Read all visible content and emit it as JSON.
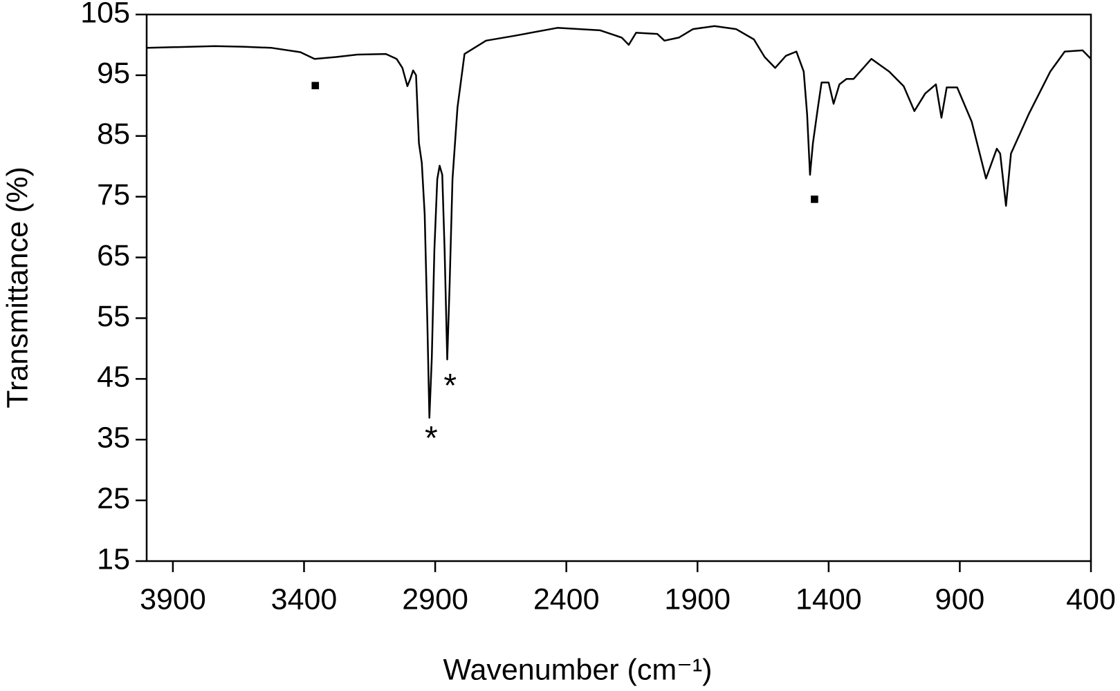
{
  "chart_data": {
    "type": "line",
    "x_label": "Wavenumber (cm⁻¹)",
    "y_label": "Transmittance (%)",
    "x": [
      4000,
      3741,
      3632,
      3523,
      3414,
      3360,
      3278,
      3197,
      3088,
      3047,
      3025,
      3006,
      2995,
      2984,
      2973,
      2962,
      2951,
      2940,
      2930,
      2922,
      2913,
      2903,
      2892,
      2883,
      2873,
      2864,
      2854,
      2845,
      2834,
      2815,
      2788,
      2706,
      2598,
      2434,
      2271,
      2189,
      2162,
      2134,
      2053,
      2026,
      1971,
      1917,
      1835,
      1753,
      1685,
      1644,
      1604,
      1563,
      1523,
      1495,
      1482,
      1471,
      1460,
      1441,
      1427,
      1400,
      1381,
      1359,
      1332,
      1305,
      1237,
      1169,
      1114,
      1073,
      1032,
      991,
      970,
      950,
      910,
      855,
      800,
      759,
      746,
      724,
      705,
      637,
      555,
      500,
      432,
      400
    ],
    "values": [
      99.5,
      99.8,
      99.7,
      99.5,
      98.8,
      97.7,
      98.0,
      98.4,
      98.5,
      97.7,
      96.2,
      93.2,
      94.4,
      95.8,
      95.0,
      83.8,
      80.6,
      72.1,
      54.5,
      38.6,
      48.5,
      66.2,
      77.9,
      80.1,
      78.6,
      66.2,
      48.2,
      60.3,
      77.9,
      89.7,
      98.5,
      100.7,
      101.5,
      102.8,
      102.4,
      101.2,
      100.0,
      102.0,
      101.8,
      100.7,
      101.2,
      102.6,
      103.1,
      102.6,
      100.9,
      98.0,
      96.2,
      98.2,
      98.9,
      95.6,
      88.6,
      78.6,
      83.8,
      89.7,
      93.8,
      93.8,
      90.3,
      93.5,
      94.4,
      94.4,
      97.7,
      95.6,
      93.2,
      89.1,
      92.0,
      93.5,
      88.0,
      93.0,
      93.0,
      87.4,
      78.0,
      82.9,
      82.1,
      73.5,
      82.1,
      88.6,
      95.6,
      98.9,
      99.1,
      97.7
    ],
    "color": "#000000",
    "xlim": [
      4000,
      400
    ],
    "xticks": [
      3900,
      3400,
      2900,
      2400,
      1900,
      1400,
      900,
      400
    ],
    "ylim": [
      15,
      105
    ],
    "yticks": [
      15,
      25,
      35,
      45,
      55,
      65,
      75,
      85,
      95,
      105
    ],
    "annotations": [
      {
        "text": "*",
        "x": 2915,
        "y": 34.9
      },
      {
        "text": "*",
        "x": 2843,
        "y": 43.5
      },
      {
        "text": "■",
        "x": 3357,
        "y": 93.2
      },
      {
        "text": "■",
        "x": 1454,
        "y": 74.5
      }
    ]
  }
}
